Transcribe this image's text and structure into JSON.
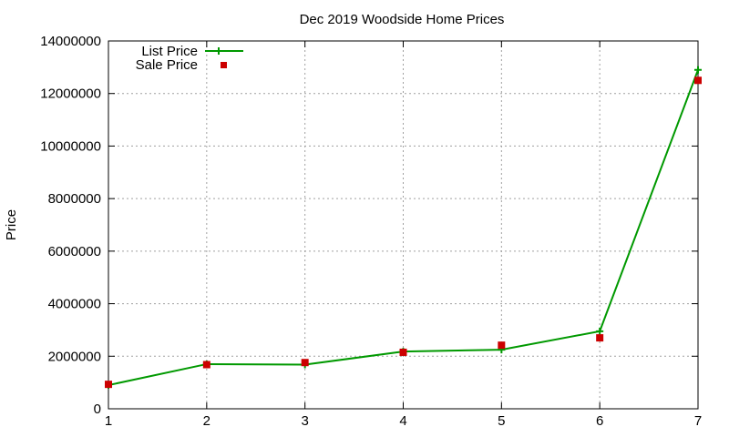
{
  "chart_data": {
    "type": "line",
    "title": "Dec 2019 Woodside Home Prices",
    "xlabel": "",
    "ylabel": "Price",
    "xlim": [
      1,
      7
    ],
    "ylim": [
      0,
      14000000
    ],
    "x_ticks": [
      "1",
      "2",
      "3",
      "4",
      "5",
      "6",
      "7"
    ],
    "y_ticks": [
      "0",
      "2000000",
      "4000000",
      "6000000",
      "8000000",
      "10000000",
      "12000000",
      "14000000"
    ],
    "grid": true,
    "legend_position": "top-left",
    "x": [
      1,
      2,
      3,
      4,
      5,
      6,
      7
    ],
    "series": [
      {
        "name": "List Price",
        "style": "line-with-plus-markers",
        "color": "#009900",
        "values": [
          900000,
          1700000,
          1680000,
          2180000,
          2250000,
          2950000,
          12900000
        ]
      },
      {
        "name": "Sale Price",
        "style": "square-markers",
        "color": "#cc0000",
        "values": [
          930000,
          1680000,
          1760000,
          2150000,
          2420000,
          2700000,
          12500000
        ]
      }
    ]
  }
}
